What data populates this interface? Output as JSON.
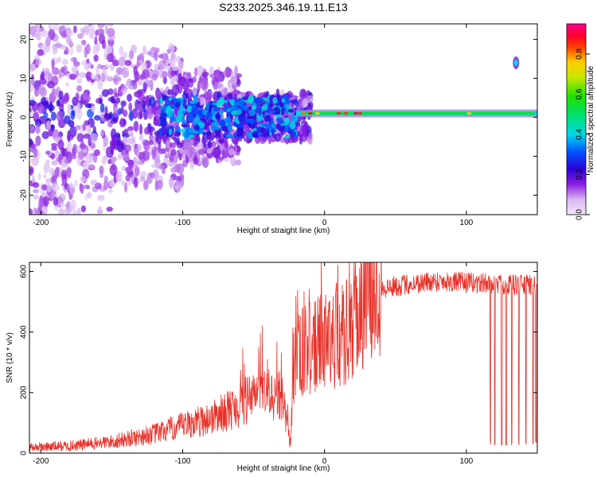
{
  "title": "S233.2025.346.19.11.E13",
  "chart_data": [
    {
      "type": "heatmap",
      "xlabel": "Height of straight line (km)",
      "ylabel": "Frequency (Hz)",
      "xlim": [
        -208,
        150
      ],
      "ylim": [
        -25,
        24
      ],
      "xticks": [
        -200,
        -100,
        0,
        100
      ],
      "yticks": [
        -20,
        -10,
        0,
        10,
        20
      ],
      "colorbar": {
        "label": "Normalized spectral amplitude",
        "ticks": [
          "0.0",
          "0.2",
          "0.4",
          "0.6",
          "0.8"
        ],
        "range": [
          0,
          0.95
        ]
      },
      "features": {
        "carrier_line_hz": 1,
        "carrier_start_km": -20,
        "side_blob": {
          "km": 135,
          "hz": 14
        },
        "scatter_region_km": [
          -208,
          -20
        ]
      }
    },
    {
      "type": "line",
      "xlabel": "Height of straight line (km)",
      "ylabel": "SNR (10 * v/v)",
      "xlim": [
        -208,
        150
      ],
      "ylim": [
        0,
        630
      ],
      "xticks": [
        -200,
        -100,
        0,
        100
      ],
      "yticks": [
        0,
        200,
        400,
        600
      ],
      "color": "#e8322a",
      "trend_points": [
        [
          -208,
          18
        ],
        [
          -180,
          22
        ],
        [
          -150,
          35
        ],
        [
          -120,
          60
        ],
        [
          -100,
          85
        ],
        [
          -80,
          110
        ],
        [
          -60,
          150
        ],
        [
          -45,
          190
        ],
        [
          -30,
          170
        ],
        [
          -24,
          30
        ],
        [
          -22,
          280
        ],
        [
          -15,
          320
        ],
        [
          -5,
          340
        ],
        [
          5,
          360
        ],
        [
          15,
          380
        ],
        [
          20,
          420
        ],
        [
          30,
          500
        ],
        [
          40,
          540
        ],
        [
          60,
          555
        ],
        [
          80,
          565
        ],
        [
          100,
          560
        ],
        [
          120,
          555
        ],
        [
          150,
          550
        ]
      ],
      "dropouts_km": [
        117,
        120,
        125,
        128,
        132,
        137,
        142,
        147,
        149
      ]
    }
  ]
}
